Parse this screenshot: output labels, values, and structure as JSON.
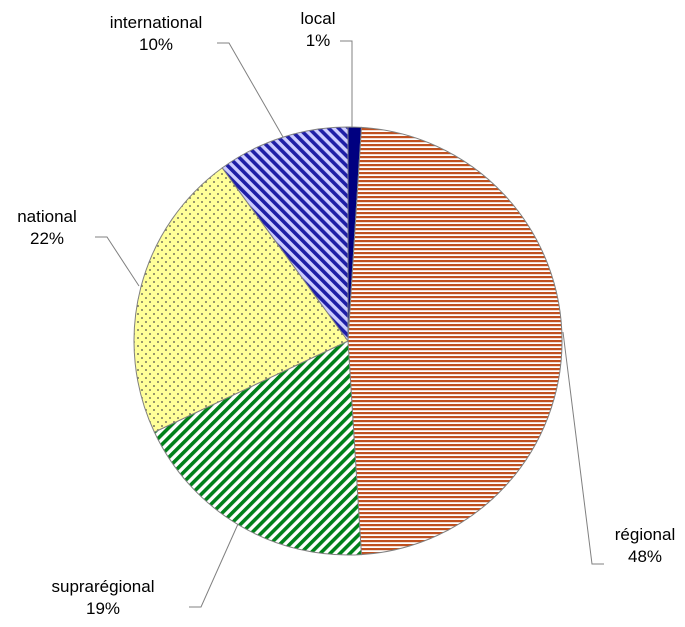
{
  "chart_data": {
    "type": "pie",
    "categories": [
      "local",
      "régional",
      "suprarégional",
      "national",
      "international"
    ],
    "values": [
      1,
      48,
      19,
      22,
      10
    ],
    "value_labels": [
      "1%",
      "48%",
      "19%",
      "22%",
      "10%"
    ],
    "start_angle_deg": 0,
    "direction": "clockwise",
    "legend": "none",
    "slice_styles": [
      {
        "fill": "#000080",
        "pattern": "solid",
        "pattern_color": "#000080"
      },
      {
        "fill": "#ffffff",
        "pattern": "horizontal-stripes",
        "pattern_color": "#c0501f"
      },
      {
        "fill": "#ffffff",
        "pattern": "diagonal-stripes",
        "pattern_color": "#00801a"
      },
      {
        "fill": "#ffff99",
        "pattern": "dots",
        "pattern_color": "#4d4d4d"
      },
      {
        "fill": "#ccccff",
        "pattern": "diagonal-stripes-reverse",
        "pattern_color": "#1f1fa6"
      }
    ]
  }
}
